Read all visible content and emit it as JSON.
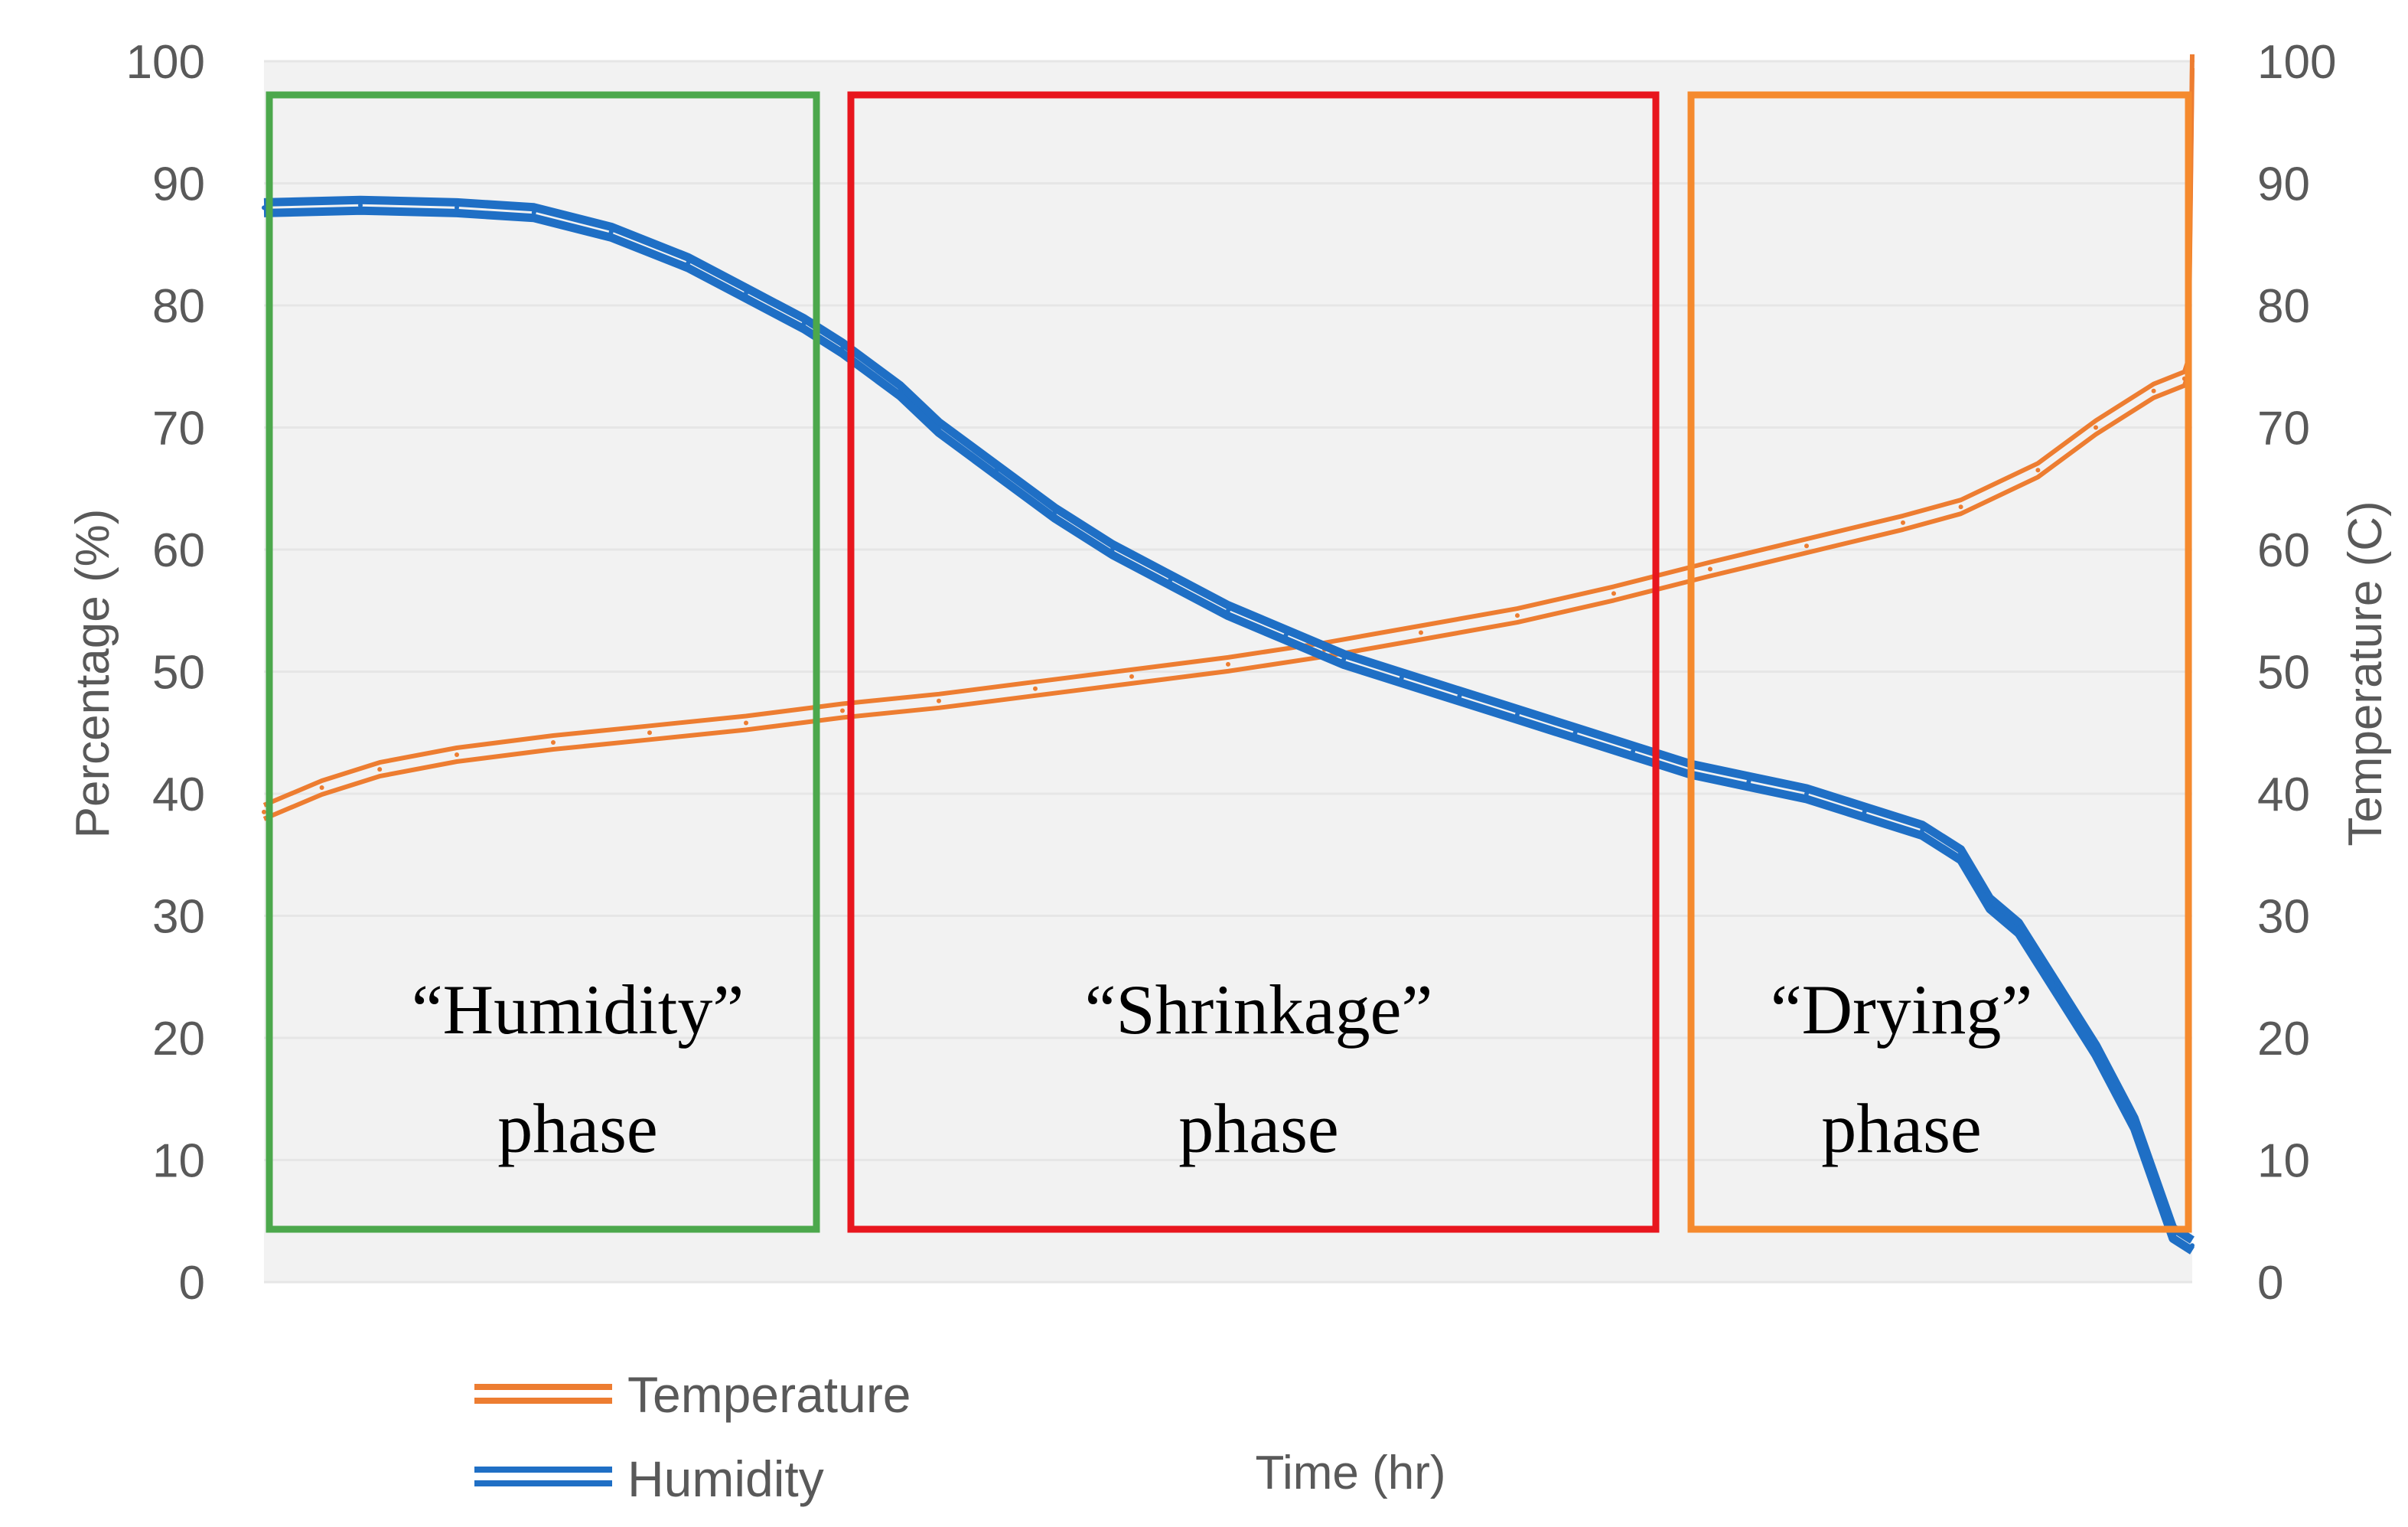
{
  "chart_data": {
    "type": "line",
    "xlabel": "Time (hr)",
    "ylabel": "Percentage (%)",
    "y2label": "Temperature (C)",
    "ylim": [
      0,
      100
    ],
    "y2lim": [
      0,
      100
    ],
    "yticks": [
      "0",
      "10",
      "20",
      "30",
      "40",
      "50",
      "60",
      "70",
      "80",
      "90",
      "100"
    ],
    "y2ticks": [
      "0",
      "10",
      "20",
      "30",
      "40",
      "50",
      "60",
      "70",
      "80",
      "90",
      "100"
    ],
    "xlim": [
      0,
      100
    ],
    "grid": true,
    "legend": [
      {
        "name": "Temperature",
        "color": "#ED7D31"
      },
      {
        "name": "Humidity",
        "color": "#1F6FC5"
      }
    ],
    "series": [
      {
        "name": "Temperature",
        "color": "#ED7D31",
        "axis": "right",
        "x": [
          0,
          3,
          6,
          10,
          15,
          20,
          25,
          30,
          35,
          40,
          45,
          50,
          55,
          60,
          65,
          70,
          75,
          80,
          85,
          88,
          92,
          95,
          98,
          99.6,
          99.8,
          100
        ],
        "values": [
          38.5,
          40.5,
          42,
          43.2,
          44.2,
          45,
          45.8,
          46.8,
          47.6,
          48.6,
          49.6,
          50.6,
          51.8,
          53.2,
          54.6,
          56.4,
          58.4,
          60.3,
          62.2,
          63.5,
          66.5,
          70,
          73,
          74,
          75,
          100
        ]
      },
      {
        "name": "Humidity",
        "color": "#1F6FC5",
        "axis": "left",
        "x": [
          0,
          5,
          10,
          14,
          18,
          22,
          25,
          28,
          30,
          33,
          35,
          38,
          41,
          44,
          47,
          50,
          53,
          56,
          59,
          62,
          65,
          68,
          71,
          74,
          77,
          80,
          83,
          86,
          88,
          89.5,
          91,
          93,
          95,
          97,
          99,
          100
        ],
        "values": [
          88,
          88.2,
          88,
          87.6,
          86,
          83.5,
          81,
          78.5,
          76.5,
          73,
          70,
          66.5,
          63,
          60,
          57.5,
          55,
          53,
          51,
          49.5,
          48,
          46.5,
          45,
          43.5,
          42,
          41,
          40,
          38.5,
          37,
          35,
          31,
          29,
          24,
          19,
          13,
          4,
          3
        ]
      }
    ],
    "annotations": [
      {
        "line1": "“Humidity”",
        "line2": "phase",
        "color": "#4CA84C"
      },
      {
        "line1": "“Shrinkage”",
        "line2": "phase",
        "color": "#E8161E"
      },
      {
        "line1": "“Drying”",
        "line2": "phase",
        "color": "#F58A2E"
      }
    ]
  }
}
